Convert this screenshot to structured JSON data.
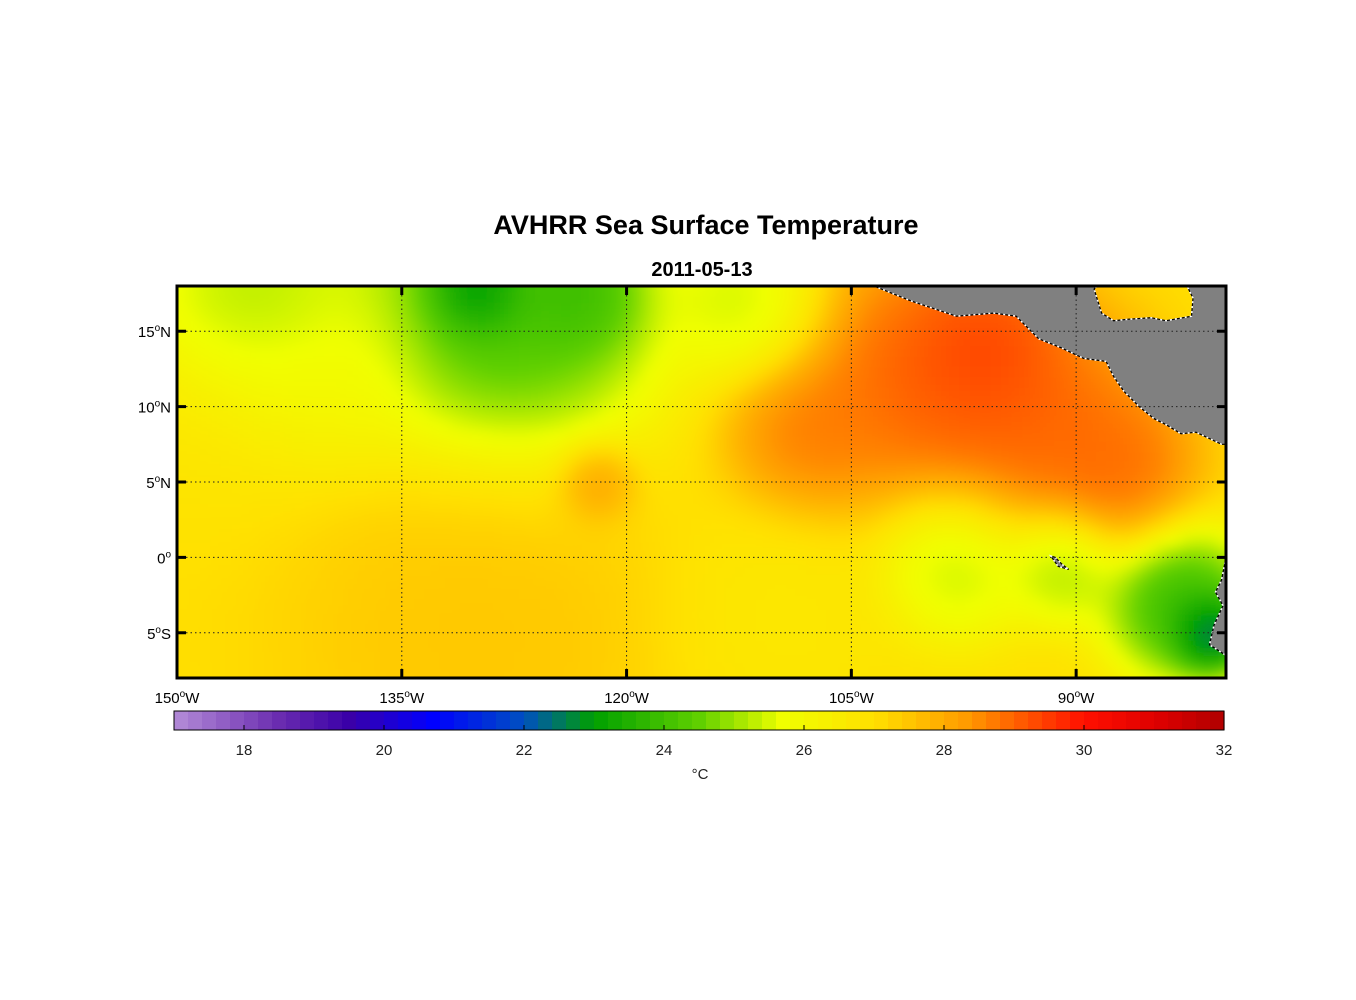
{
  "figure": {
    "title": "AVHRR Sea Surface Temperature",
    "subtitle": "2011-05-13"
  },
  "map": {
    "lon_range": [
      -150,
      -80
    ],
    "lat_range": [
      -8,
      18
    ],
    "lon_ticks": [
      {
        "value": -150,
        "deg": "150",
        "sup": "o",
        "hem": "W"
      },
      {
        "value": -135,
        "deg": "135",
        "sup": "o",
        "hem": "W"
      },
      {
        "value": -120,
        "deg": "120",
        "sup": "o",
        "hem": "W"
      },
      {
        "value": -105,
        "deg": "105",
        "sup": "o",
        "hem": "W"
      },
      {
        "value": -90,
        "deg": "90",
        "sup": "o",
        "hem": "W"
      }
    ],
    "lat_ticks": [
      {
        "value": 15,
        "deg": "15",
        "sup": "o",
        "hem": "N"
      },
      {
        "value": 10,
        "deg": "10",
        "sup": "o",
        "hem": "N"
      },
      {
        "value": 5,
        "deg": "5",
        "sup": "o",
        "hem": "N"
      },
      {
        "value": 0,
        "deg": "0",
        "sup": "o",
        "hem": ""
      },
      {
        "value": -5,
        "deg": "5",
        "sup": "o",
        "hem": "S"
      }
    ],
    "colors": {
      "land": "#808080",
      "frame": "#000000",
      "grid": "#333333"
    }
  },
  "colorbar": {
    "min": 17,
    "max": 32,
    "ticks": [
      "18",
      "20",
      "22",
      "24",
      "26",
      "28",
      "30",
      "32"
    ],
    "units": "°C",
    "stops": [
      {
        "v": 17,
        "c": "#b48cd8"
      },
      {
        "v": 18.5,
        "c": "#6a2cb0"
      },
      {
        "v": 19.5,
        "c": "#3a00a8"
      },
      {
        "v": 20.7,
        "c": "#0000ff"
      },
      {
        "v": 22,
        "c": "#0050c0"
      },
      {
        "v": 23,
        "c": "#00a000"
      },
      {
        "v": 24.5,
        "c": "#60d000"
      },
      {
        "v": 25.7,
        "c": "#f0ff00"
      },
      {
        "v": 27,
        "c": "#ffe000"
      },
      {
        "v": 28.3,
        "c": "#ff9c00"
      },
      {
        "v": 30,
        "c": "#ff1000"
      },
      {
        "v": 31,
        "c": "#e00000"
      },
      {
        "v": 32,
        "c": "#b00000"
      }
    ]
  },
  "sst_field": {
    "description_units": "°C",
    "background": 27.0,
    "features": [
      {
        "lon": -145,
        "lat": 16,
        "value": 24.5,
        "r": 6
      },
      {
        "lon": -128,
        "lat": 16.5,
        "value": 23.2,
        "r": 8
      },
      {
        "lon": -130,
        "lat": 18,
        "value": 21.8,
        "r": 2.5
      },
      {
        "lon": -123,
        "lat": 17.5,
        "value": 23.5,
        "r": 3
      },
      {
        "lon": -112,
        "lat": 17,
        "value": 25.0,
        "r": 4
      },
      {
        "lon": -100,
        "lat": 12,
        "value": 29.6,
        "r": 7
      },
      {
        "lon": -92,
        "lat": 9,
        "value": 29.4,
        "r": 6
      },
      {
        "lon": -108,
        "lat": 8,
        "value": 29.0,
        "r": 4
      },
      {
        "lon": -96,
        "lat": 14,
        "value": 29.8,
        "r": 4
      },
      {
        "lon": -122,
        "lat": 5,
        "value": 28.6,
        "r": 2
      },
      {
        "lon": -98,
        "lat": -0.3,
        "value": 24.8,
        "r": 4
      },
      {
        "lon": -91,
        "lat": -0.5,
        "value": 24.5,
        "r": 3
      },
      {
        "lon": -83,
        "lat": -3,
        "value": 23.0,
        "r": 4
      },
      {
        "lon": -81,
        "lat": -5,
        "value": 21.0,
        "r": 2
      },
      {
        "lon": -87,
        "lat": 6,
        "value": 29.2,
        "r": 4
      },
      {
        "lon": -148,
        "lat": 9,
        "value": 26.8,
        "r": 6
      },
      {
        "lon": -140,
        "lat": 12,
        "value": 26.0,
        "r": 5
      },
      {
        "lon": -130,
        "lat": -5,
        "value": 27.6,
        "r": 10
      },
      {
        "lon": -110,
        "lat": -4,
        "value": 26.6,
        "r": 6
      }
    ]
  },
  "land": {
    "central_america": [
      [
        -103.5,
        18
      ],
      [
        -101,
        17
      ],
      [
        -98,
        16
      ],
      [
        -95.5,
        16.2
      ],
      [
        -94,
        16
      ],
      [
        -92.5,
        14.5
      ],
      [
        -91,
        13.9
      ],
      [
        -89.5,
        13.2
      ],
      [
        -88,
        13
      ],
      [
        -87.5,
        12
      ],
      [
        -86.8,
        11
      ],
      [
        -85.8,
        10
      ],
      [
        -84.8,
        9.2
      ],
      [
        -84,
        8.8
      ],
      [
        -83,
        8.2
      ],
      [
        -82,
        8.3
      ],
      [
        -80.3,
        7.5
      ],
      [
        -80,
        7.5
      ],
      [
        -80,
        18
      ],
      [
        -82.6,
        18
      ],
      [
        -82.2,
        17.2
      ],
      [
        -82.3,
        16
      ],
      [
        -84,
        15.7
      ],
      [
        -85,
        15.9
      ],
      [
        -86.5,
        15.8
      ],
      [
        -87.5,
        15.7
      ],
      [
        -88.3,
        16.2
      ],
      [
        -88.8,
        17.8
      ],
      [
        -88.6,
        18
      ]
    ],
    "south_america": [
      [
        -80,
        0
      ],
      [
        -80.3,
        -1.5
      ],
      [
        -80.7,
        -2.3
      ],
      [
        -80.2,
        -3.2
      ],
      [
        -80.8,
        -4.5
      ],
      [
        -81.1,
        -5.8
      ],
      [
        -80,
        -6.5
      ],
      [
        -80,
        0
      ]
    ],
    "galapagos": [
      [
        -91.7,
        0.1
      ],
      [
        -91.2,
        -0.6
      ],
      [
        -90.5,
        -0.8
      ],
      [
        -90.9,
        -0.5
      ],
      [
        -91.4,
        0.0
      ]
    ]
  }
}
